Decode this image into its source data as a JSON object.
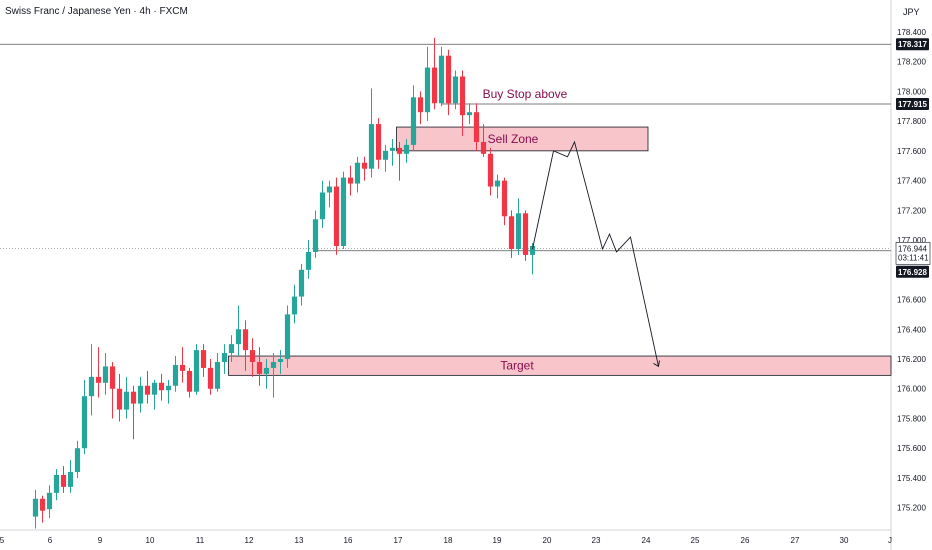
{
  "header": {
    "title": "Swiss Franc / Japanese Yen · 4h · FXCM",
    "unit": "JPY"
  },
  "colors": {
    "bull": "#26a69a",
    "bear": "#f23645",
    "zone_fill": "#f8c5cb",
    "zone_stroke": "#131722",
    "annotation_text": "#880e4f",
    "tag_bg": "#131722"
  },
  "chart_data": {
    "type": "candlestick",
    "title": "Swiss Franc / Japanese Yen · 4h · FXCM",
    "ylabel": "JPY",
    "ylim": [
      175.05,
      178.48
    ],
    "x_ticks": [
      "5",
      "6",
      "9",
      "10",
      "11",
      "12",
      "13",
      "16",
      "17",
      "18",
      "19",
      "20",
      "23",
      "24",
      "25",
      "26",
      "27",
      "30",
      "J"
    ],
    "y_ticks": [
      "178.400",
      "178.200",
      "178.000",
      "177.800",
      "177.600",
      "177.400",
      "177.200",
      "177.000",
      "176.800",
      "176.600",
      "176.400",
      "176.200",
      "176.000",
      "175.800",
      "175.600",
      "175.400",
      "175.200"
    ],
    "candles": [
      [
        175.14,
        175.26,
        175.06,
        175.32
      ],
      [
        175.26,
        175.18,
        175.1,
        175.28
      ],
      [
        175.19,
        175.3,
        175.13,
        175.35
      ],
      [
        175.3,
        175.42,
        175.25,
        175.46
      ],
      [
        175.42,
        175.34,
        175.3,
        175.48
      ],
      [
        175.34,
        175.44,
        175.3,
        175.52
      ],
      [
        175.44,
        175.6,
        175.4,
        175.65
      ],
      [
        175.6,
        175.95,
        175.56,
        176.06
      ],
      [
        175.95,
        176.08,
        175.82,
        176.3
      ],
      [
        176.08,
        176.04,
        175.94,
        176.28
      ],
      [
        176.04,
        176.15,
        175.96,
        176.24
      ],
      [
        176.15,
        176.0,
        175.8,
        176.18
      ],
      [
        176.0,
        175.86,
        175.78,
        176.1
      ],
      [
        175.86,
        175.98,
        175.8,
        176.08
      ],
      [
        175.98,
        175.9,
        175.66,
        176.02
      ],
      [
        175.9,
        176.02,
        175.84,
        176.08
      ],
      [
        176.02,
        175.96,
        175.9,
        176.12
      ],
      [
        175.96,
        176.04,
        175.86,
        176.06
      ],
      [
        176.04,
        175.99,
        175.92,
        176.1
      ],
      [
        175.99,
        176.02,
        175.9,
        176.06
      ],
      [
        176.02,
        176.16,
        175.98,
        176.22
      ],
      [
        176.16,
        176.12,
        176.04,
        176.28
      ],
      [
        176.12,
        175.98,
        175.94,
        176.14
      ],
      [
        175.98,
        176.26,
        175.96,
        176.3
      ],
      [
        176.26,
        176.14,
        176.08,
        176.3
      ],
      [
        176.14,
        176.0,
        175.96,
        176.2
      ],
      [
        176.0,
        176.18,
        175.98,
        176.24
      ],
      [
        176.18,
        176.24,
        176.1,
        176.3
      ],
      [
        176.24,
        176.3,
        176.18,
        176.36
      ],
      [
        176.3,
        176.4,
        176.22,
        176.56
      ],
      [
        176.4,
        176.26,
        176.12,
        176.46
      ],
      [
        176.26,
        176.18,
        176.08,
        176.34
      ],
      [
        176.18,
        176.1,
        176.02,
        176.28
      ],
      [
        176.1,
        176.14,
        176.0,
        176.2
      ],
      [
        176.14,
        176.18,
        175.94,
        176.24
      ],
      [
        176.18,
        176.2,
        176.1,
        176.26
      ],
      [
        176.2,
        176.5,
        176.14,
        176.56
      ],
      [
        176.5,
        176.62,
        176.44,
        176.7
      ],
      [
        176.62,
        176.8,
        176.56,
        176.84
      ],
      [
        176.8,
        176.92,
        176.74,
        177.0
      ],
      [
        176.92,
        177.14,
        176.88,
        177.2
      ],
      [
        177.14,
        177.32,
        177.08,
        177.4
      ],
      [
        177.32,
        177.36,
        177.22,
        177.4
      ],
      [
        177.36,
        176.96,
        176.9,
        177.42
      ],
      [
        176.96,
        177.42,
        176.94,
        177.46
      ],
      [
        177.42,
        177.38,
        177.3,
        177.5
      ],
      [
        177.38,
        177.52,
        177.32,
        177.56
      ],
      [
        177.52,
        177.48,
        177.4,
        177.56
      ],
      [
        177.48,
        177.78,
        177.42,
        178.02
      ],
      [
        177.78,
        177.54,
        177.48,
        177.82
      ],
      [
        177.54,
        177.6,
        177.46,
        177.64
      ],
      [
        177.6,
        177.62,
        177.5,
        177.68
      ],
      [
        177.62,
        177.58,
        177.4,
        177.66
      ],
      [
        177.58,
        177.64,
        177.52,
        177.68
      ],
      [
        177.64,
        177.96,
        177.6,
        178.04
      ],
      [
        177.96,
        177.86,
        177.78,
        178.0
      ],
      [
        177.86,
        178.16,
        177.8,
        178.3
      ],
      [
        178.16,
        177.92,
        177.88,
        178.36
      ],
      [
        177.92,
        178.24,
        177.9,
        178.3
      ],
      [
        178.24,
        177.92,
        177.84,
        178.28
      ],
      [
        177.92,
        178.1,
        177.88,
        178.14
      ],
      [
        178.1,
        177.84,
        177.7,
        178.14
      ],
      [
        177.84,
        177.86,
        177.78,
        177.92
      ],
      [
        177.86,
        177.66,
        177.6,
        177.92
      ],
      [
        177.66,
        177.58,
        177.56,
        177.78
      ],
      [
        177.58,
        177.36,
        177.3,
        177.62
      ],
      [
        177.36,
        177.4,
        177.28,
        177.44
      ],
      [
        177.4,
        177.16,
        177.1,
        177.42
      ],
      [
        177.16,
        176.94,
        176.88,
        177.2
      ],
      [
        176.94,
        177.18,
        176.9,
        177.28
      ],
      [
        177.18,
        176.9,
        176.86,
        177.2
      ],
      [
        176.9,
        176.96,
        176.77,
        176.98
      ]
    ],
    "lines": {
      "high_line": 178.317,
      "buy_stop_line": 177.915,
      "current_line": 176.944,
      "support_line": 176.928
    },
    "zones": {
      "sell_zone": {
        "top": 177.76,
        "bottom": 177.6,
        "label": "Sell Zone"
      },
      "target": {
        "top": 176.22,
        "bottom": 176.09,
        "label": "Target"
      }
    },
    "annotations": {
      "buy_stop_label": "Buy Stop above"
    },
    "projection_path": [
      [
        71,
        176.94
      ],
      [
        74,
        177.6
      ],
      [
        76,
        177.56
      ],
      [
        77,
        177.66
      ],
      [
        81,
        176.94
      ],
      [
        82,
        177.04
      ],
      [
        83,
        176.92
      ],
      [
        85,
        177.02
      ],
      [
        89,
        176.15
      ]
    ],
    "price_tags": {
      "high": "178.317",
      "buy_stop": "177.915",
      "current": "176.944",
      "countdown": "03:11:41",
      "low": "176.928"
    }
  }
}
